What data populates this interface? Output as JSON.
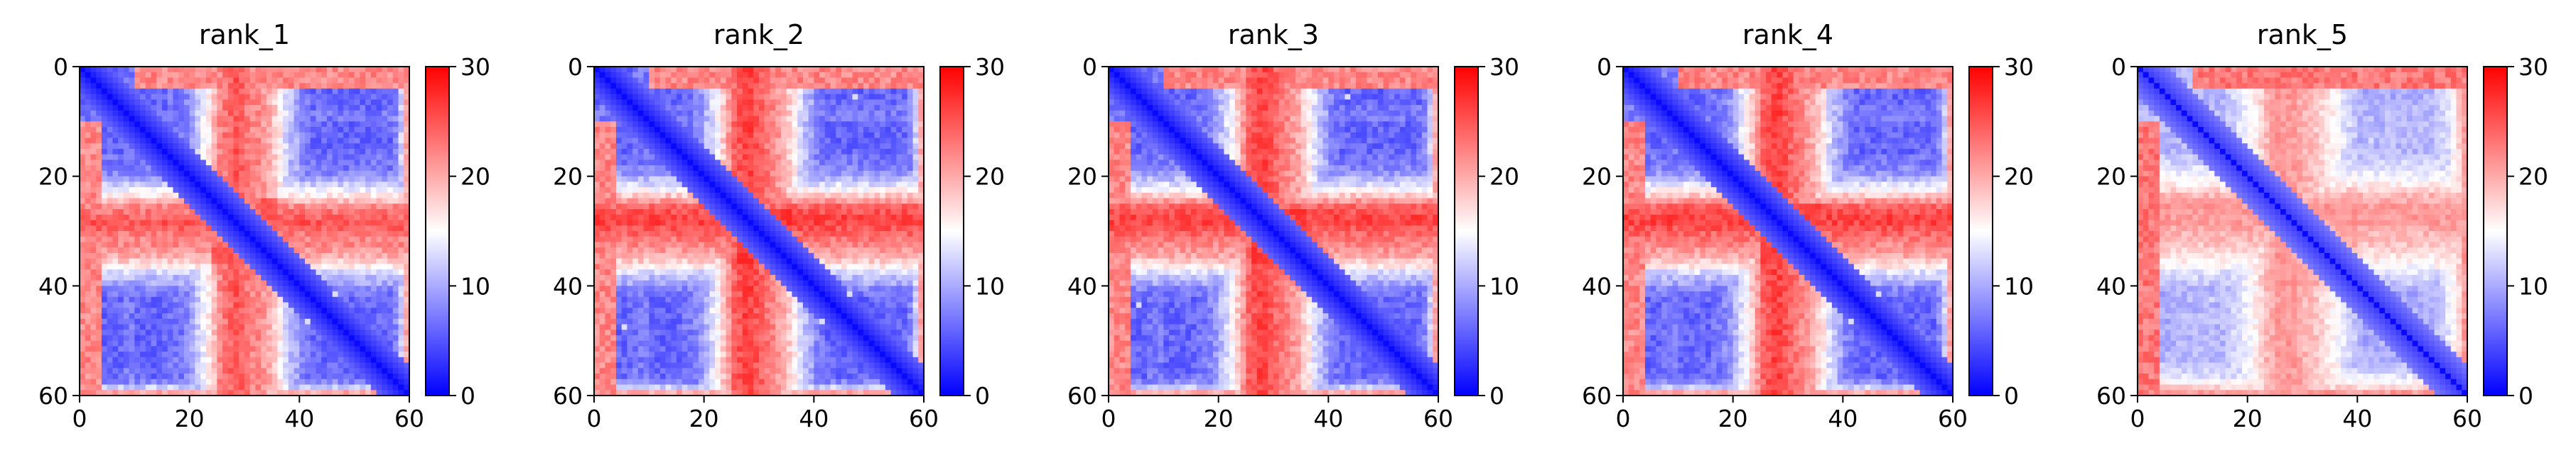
{
  "chart_data": [
    {
      "type": "heatmap",
      "title": "rank_1",
      "xlim": [
        0,
        60
      ],
      "ylim": [
        60,
        0
      ],
      "xticks": [
        "0",
        "20",
        "40",
        "60"
      ],
      "yticks": [
        "0",
        "20",
        "40",
        "60"
      ],
      "colorbar": {
        "min": 0,
        "max": 30,
        "ticks": [
          "0",
          "10",
          "20",
          "30"
        ],
        "colormap": [
          "#0000ff",
          "#ffffff",
          "#ff0000"
        ]
      },
      "matrix": {
        "n": 60,
        "profile": [
          6,
          6,
          6,
          6,
          6,
          6,
          6,
          6,
          7,
          7,
          6,
          6,
          6,
          6,
          6,
          6,
          7,
          7,
          7,
          8,
          10,
          12,
          14,
          16,
          19,
          22,
          23,
          24,
          25,
          24,
          23,
          22,
          22,
          21,
          20,
          18,
          16,
          13,
          11,
          10,
          8,
          7,
          6,
          6,
          6,
          6,
          6,
          6,
          6,
          6,
          6,
          6,
          6,
          6,
          6,
          6,
          6,
          8,
          12,
          20
        ],
        "alpha": 1.0,
        "blocks": [
          [
            0,
            4,
            10,
            60,
            22
          ],
          [
            24,
            36,
            24,
            36,
            24
          ]
        ],
        "highlights": [
          [
            41,
            46,
            13
          ]
        ]
      }
    },
    {
      "type": "heatmap",
      "title": "rank_2",
      "xlim": [
        0,
        60
      ],
      "ylim": [
        60,
        0
      ],
      "xticks": [
        "0",
        "20",
        "40",
        "60"
      ],
      "yticks": [
        "0",
        "20",
        "40",
        "60"
      ],
      "colorbar": {
        "min": 0,
        "max": 30,
        "ticks": [
          "0",
          "10",
          "20",
          "30"
        ],
        "colormap": [
          "#0000ff",
          "#ffffff",
          "#ff0000"
        ]
      },
      "matrix": {
        "n": 60,
        "profile": [
          6,
          6,
          6,
          6,
          6,
          6,
          6,
          7,
          7,
          7,
          6,
          6,
          6,
          6,
          6,
          6,
          7,
          7,
          8,
          9,
          11,
          13,
          15,
          18,
          21,
          24,
          25,
          26,
          26,
          25,
          24,
          23,
          22,
          21,
          20,
          18,
          16,
          13,
          11,
          10,
          8,
          7,
          6,
          6,
          6,
          6,
          6,
          6,
          6,
          6,
          6,
          6,
          6,
          6,
          6,
          6,
          6,
          8,
          12,
          20
        ],
        "alpha": 1.0,
        "blocks": [
          [
            0,
            4,
            10,
            60,
            22
          ],
          [
            26,
            36,
            26,
            36,
            26
          ]
        ],
        "highlights": [
          [
            41,
            46,
            13
          ],
          [
            5,
            47,
            13
          ]
        ]
      }
    },
    {
      "type": "heatmap",
      "title": "rank_3",
      "xlim": [
        0,
        60
      ],
      "ylim": [
        60,
        0
      ],
      "xticks": [
        "0",
        "20",
        "40",
        "60"
      ],
      "yticks": [
        "0",
        "20",
        "40",
        "60"
      ],
      "colorbar": {
        "min": 0,
        "max": 30,
        "ticks": [
          "0",
          "10",
          "20",
          "30"
        ],
        "colormap": [
          "#0000ff",
          "#ffffff",
          "#ff0000"
        ]
      },
      "matrix": {
        "n": 60,
        "profile": [
          6,
          6,
          6,
          6,
          6,
          6,
          6,
          7,
          7,
          7,
          6,
          6,
          6,
          6,
          6,
          6,
          7,
          7,
          8,
          9,
          11,
          13,
          15,
          18,
          21,
          24,
          25,
          26,
          26,
          25,
          24,
          23,
          22,
          21,
          20,
          18,
          16,
          13,
          11,
          10,
          8,
          7,
          6,
          6,
          6,
          6,
          6,
          6,
          6,
          6,
          6,
          6,
          6,
          6,
          6,
          6,
          6,
          8,
          12,
          20
        ],
        "alpha": 1.0,
        "blocks": [
          [
            0,
            4,
            10,
            60,
            22
          ],
          [
            26,
            36,
            26,
            36,
            26
          ]
        ],
        "highlights": [
          [
            5,
            43,
            13
          ]
        ]
      }
    },
    {
      "type": "heatmap",
      "title": "rank_4",
      "xlim": [
        0,
        60
      ],
      "ylim": [
        60,
        0
      ],
      "xticks": [
        "0",
        "20",
        "40",
        "60"
      ],
      "yticks": [
        "0",
        "20",
        "40",
        "60"
      ],
      "colorbar": {
        "min": 0,
        "max": 30,
        "ticks": [
          "0",
          "10",
          "20",
          "30"
        ],
        "colormap": [
          "#0000ff",
          "#ffffff",
          "#ff0000"
        ]
      },
      "matrix": {
        "n": 60,
        "profile": [
          6,
          6,
          6,
          6,
          6,
          6,
          6,
          7,
          7,
          7,
          6,
          6,
          6,
          6,
          6,
          6,
          7,
          7,
          8,
          9,
          11,
          13,
          15,
          18,
          21,
          24,
          25,
          26,
          26,
          25,
          24,
          23,
          22,
          21,
          20,
          18,
          16,
          13,
          11,
          10,
          8,
          7,
          6,
          6,
          6,
          6,
          6,
          6,
          6,
          6,
          6,
          6,
          6,
          6,
          6,
          6,
          6,
          8,
          12,
          20
        ],
        "alpha": 1.0,
        "blocks": [
          [
            0,
            4,
            10,
            60,
            22
          ],
          [
            25,
            36,
            25,
            36,
            25
          ]
        ],
        "highlights": [
          [
            41,
            46,
            13
          ]
        ]
      }
    },
    {
      "type": "heatmap",
      "title": "rank_5",
      "xlim": [
        0,
        60
      ],
      "ylim": [
        60,
        0
      ],
      "xticks": [
        "0",
        "20",
        "40",
        "60"
      ],
      "yticks": [
        "0",
        "20",
        "40",
        "60"
      ],
      "colorbar": {
        "min": 0,
        "max": 30,
        "ticks": [
          "0",
          "10",
          "20",
          "30"
        ],
        "colormap": [
          "#0000ff",
          "#ffffff",
          "#ff0000"
        ]
      },
      "matrix": {
        "n": 60,
        "profile": [
          9,
          9,
          9,
          9,
          9,
          9,
          9,
          10,
          10,
          10,
          10,
          10,
          10,
          10,
          10,
          10,
          11,
          12,
          13,
          14,
          15,
          16,
          18,
          20,
          21,
          22,
          22,
          22,
          22,
          21,
          20,
          20,
          19,
          18,
          17,
          16,
          15,
          13,
          12,
          11,
          10,
          9,
          9,
          9,
          9,
          9,
          9,
          9,
          9,
          9,
          9,
          9,
          10,
          10,
          11,
          12,
          13,
          15,
          18,
          22
        ],
        "alpha": 0.85,
        "blocks": [
          [
            0,
            4,
            10,
            60,
            23
          ],
          [
            26,
            40,
            26,
            40,
            19
          ]
        ],
        "highlights": [
          [
            13,
            42,
            13
          ]
        ]
      }
    }
  ]
}
